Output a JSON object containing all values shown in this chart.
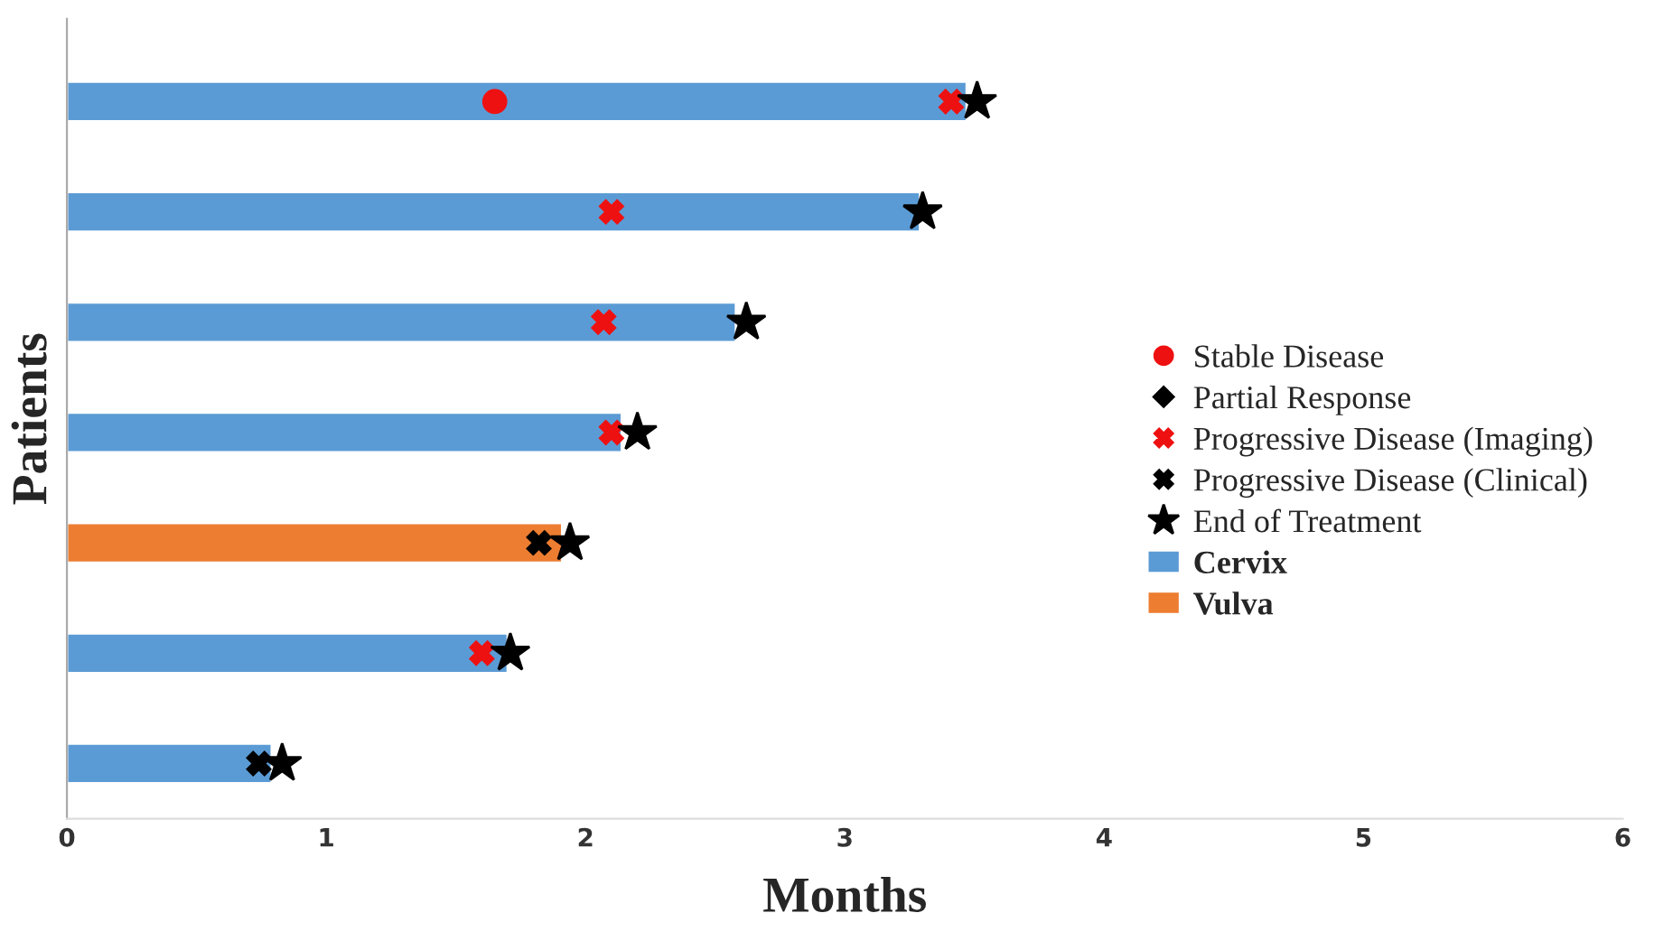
{
  "chart_data": {
    "type": "bar",
    "orientation": "horizontal",
    "xlabel": "Months",
    "ylabel": "Patients",
    "categories": [
      null,
      null,
      null,
      null,
      null,
      null,
      null
    ],
    "series": [
      {
        "name": "Cervix",
        "color": "#5b9bd5",
        "values": [
          3.47,
          3.29,
          2.58,
          2.14,
          null,
          1.7,
          0.79
        ]
      },
      {
        "name": "Vulva",
        "color": "#ed7d31",
        "values": [
          null,
          null,
          null,
          null,
          1.91,
          null,
          null
        ]
      },
      {
        "name": "Stable Disease",
        "type": "scatter",
        "marker": "circle",
        "color": "#ee1111",
        "values": [
          1.65,
          null,
          null,
          null,
          null,
          null,
          null
        ]
      },
      {
        "name": "Partial Response",
        "type": "scatter",
        "marker": "diamond",
        "color": "#000000",
        "values": [
          null,
          null,
          null,
          null,
          null,
          null,
          null
        ]
      },
      {
        "name": "Progressive Disease (Imaging)",
        "type": "scatter",
        "marker": "cross",
        "color": "#ee1111",
        "values": [
          3.41,
          2.1,
          2.07,
          2.1,
          null,
          1.6,
          null
        ]
      },
      {
        "name": "Progressive Disease (Clinical)",
        "type": "scatter",
        "marker": "cross",
        "color": "#000000",
        "values": [
          null,
          null,
          null,
          null,
          1.82,
          null,
          0.74
        ]
      },
      {
        "name": "End of Treatment",
        "type": "scatter",
        "marker": "star",
        "color": "#000000",
        "values": [
          3.51,
          3.3,
          2.62,
          2.2,
          1.94,
          1.71,
          0.83
        ]
      }
    ],
    "xlim": [
      0,
      6
    ],
    "xticks": [
      0,
      1,
      2,
      3,
      4,
      5,
      6
    ],
    "tick_labels": "x",
    "grid": false,
    "legend": "right"
  }
}
